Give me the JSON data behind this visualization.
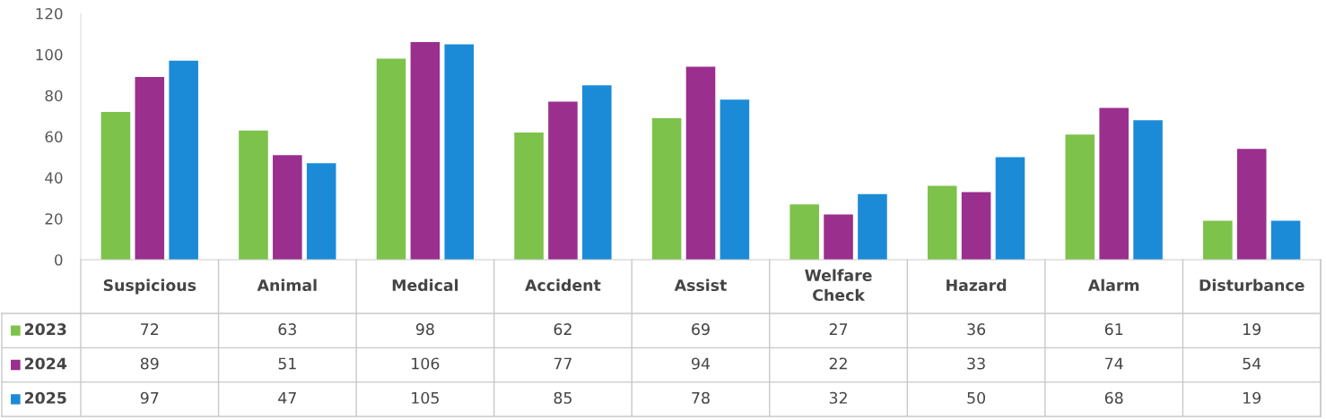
{
  "chart_data": {
    "type": "bar",
    "categories": [
      "Suspicious",
      "Animal",
      "Medical",
      "Accident",
      "Assist",
      "Welfare Check",
      "Hazard",
      "Alarm",
      "Disturbance"
    ],
    "series": [
      {
        "name": "2023",
        "color": "#7dc24b",
        "values": [
          72,
          63,
          98,
          62,
          69,
          27,
          36,
          61,
          19
        ]
      },
      {
        "name": "2024",
        "color": "#9a2f8e",
        "values": [
          89,
          51,
          106,
          77,
          94,
          22,
          33,
          74,
          54
        ]
      },
      {
        "name": "2025",
        "color": "#1b8bd8",
        "values": [
          97,
          47,
          105,
          85,
          78,
          32,
          50,
          68,
          19
        ]
      }
    ],
    "ylim": [
      0,
      120
    ],
    "yticks": [
      0,
      20,
      40,
      60,
      80,
      100,
      120
    ],
    "grid": false,
    "legend": "bottom left",
    "data_labels": true
  }
}
